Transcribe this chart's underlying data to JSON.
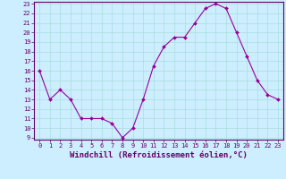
{
  "x": [
    0,
    1,
    2,
    3,
    4,
    5,
    6,
    7,
    8,
    9,
    10,
    11,
    12,
    13,
    14,
    15,
    16,
    17,
    18,
    19,
    20,
    21,
    22,
    23
  ],
  "y": [
    16,
    13,
    14,
    13,
    11,
    11,
    11,
    10.5,
    9,
    10,
    13,
    16.5,
    18.5,
    19.5,
    19.5,
    21,
    22.5,
    23,
    22.5,
    20,
    17.5,
    15,
    13.5,
    13
  ],
  "line_color": "#990099",
  "marker": "D",
  "marker_size": 2.0,
  "bg_color": "#cceeff",
  "grid_color": "#aadddd",
  "axis_color": "#660066",
  "xlabel": "Windchill (Refroidissement éolien,°C)",
  "ylim": [
    9,
    23
  ],
  "xlim": [
    -0.5,
    23.5
  ],
  "yticks": [
    9,
    10,
    11,
    12,
    13,
    14,
    15,
    16,
    17,
    18,
    19,
    20,
    21,
    22,
    23
  ],
  "xticks": [
    0,
    1,
    2,
    3,
    4,
    5,
    6,
    7,
    8,
    9,
    10,
    11,
    12,
    13,
    14,
    15,
    16,
    17,
    18,
    19,
    20,
    21,
    22,
    23
  ],
  "tick_fontsize": 5.0,
  "xlabel_fontsize": 6.5,
  "spine_color": "#660066",
  "linewidth": 0.8
}
